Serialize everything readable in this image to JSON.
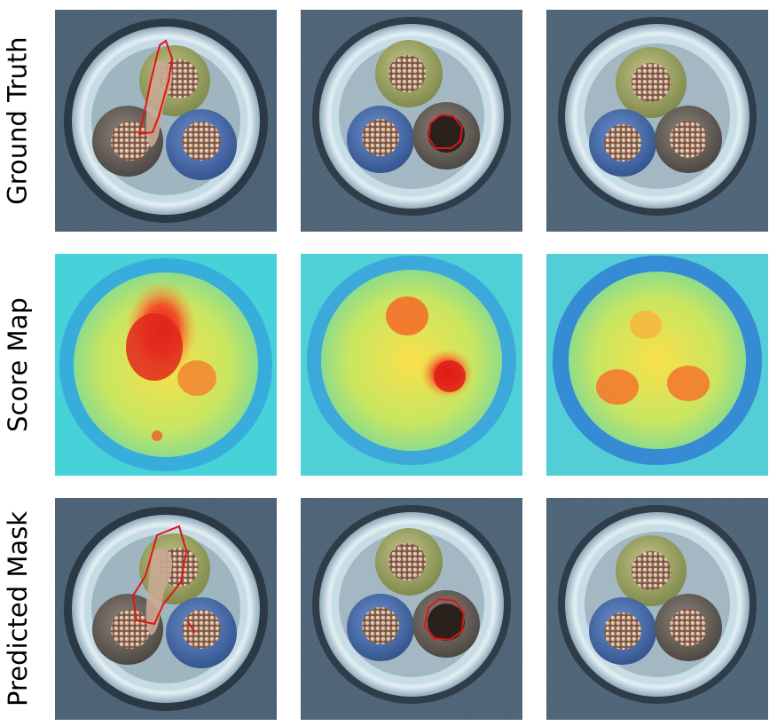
{
  "rows": [
    {
      "label": "Ground Truth"
    },
    {
      "label": "Score Map"
    },
    {
      "label": "Predicted Mask"
    }
  ],
  "colors": {
    "background_texture": "#3f5467",
    "cable_ring": "#cfe2ea",
    "wire_green": "#a9a86a",
    "wire_blue": "#4f73b6",
    "wire_brown": "#716860",
    "contour": "#e01515",
    "heat_low": "#1d5bd6",
    "heat_mid": "#dfe84a",
    "heat_high": "#e3221a"
  }
}
